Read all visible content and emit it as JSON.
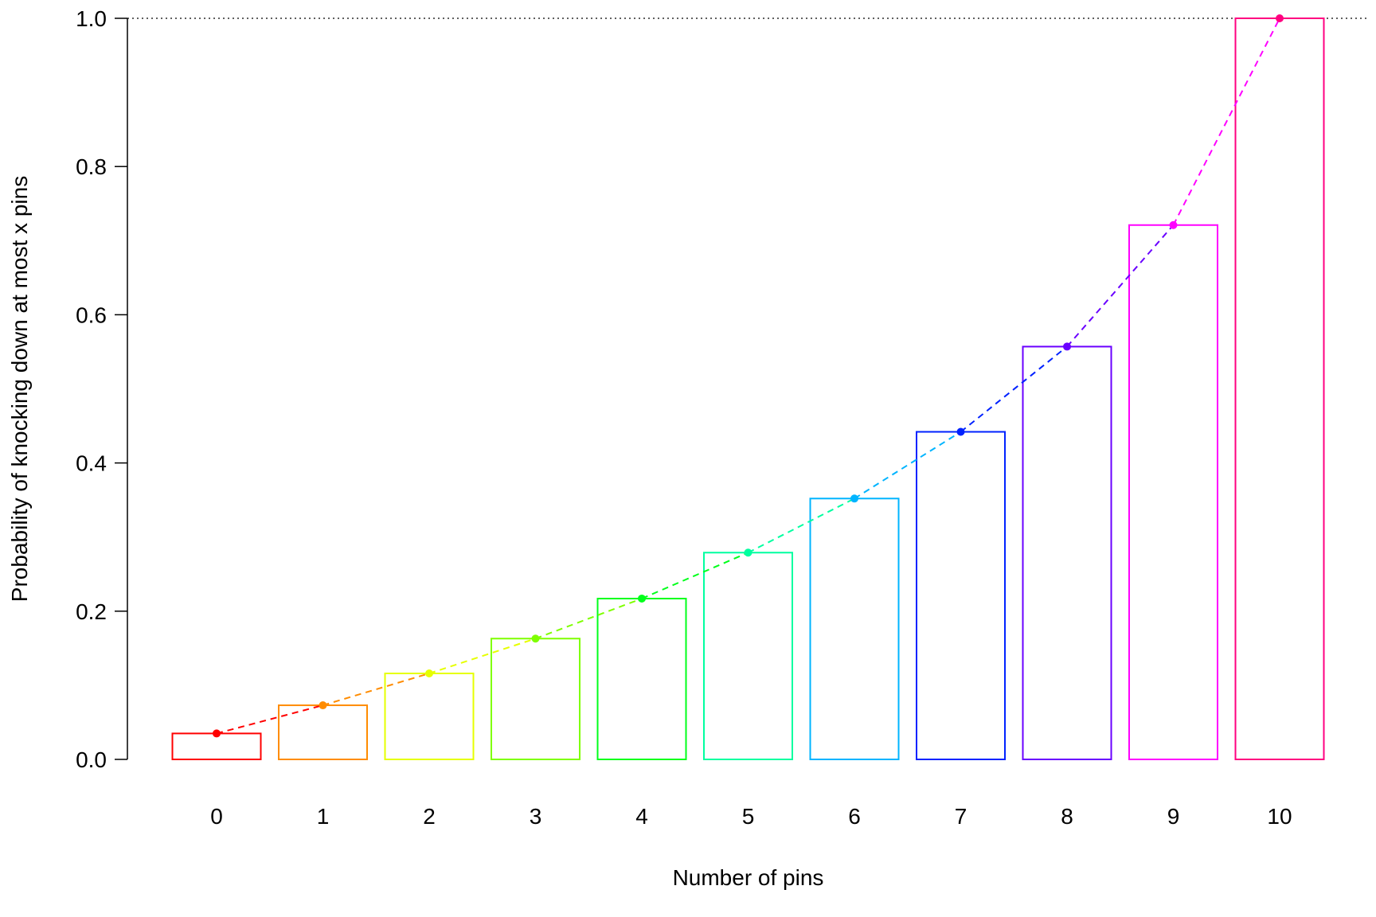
{
  "chart_data": {
    "type": "bar",
    "title": "",
    "xlabel": "Number of pins",
    "ylabel": "Probability of knocking down at most x pins",
    "categories": [
      "0",
      "1",
      "2",
      "3",
      "4",
      "5",
      "6",
      "7",
      "8",
      "9",
      "10"
    ],
    "values": [
      0.035,
      0.073,
      0.116,
      0.163,
      0.217,
      0.279,
      0.352,
      0.442,
      0.557,
      0.721,
      1.0
    ],
    "bar_colors": [
      "#FF0000",
      "#FF8C00",
      "#E6FF00",
      "#7FFF00",
      "#00FF1A",
      "#00FFA0",
      "#00B4FF",
      "#0022FF",
      "#6A00FF",
      "#FF00FF",
      "#FF0080"
    ],
    "overlay": {
      "type": "line",
      "style": "dashed",
      "markers": "points",
      "values": [
        0.035,
        0.073,
        0.116,
        0.163,
        0.217,
        0.279,
        0.352,
        0.442,
        0.557,
        0.721,
        1.0
      ]
    },
    "reference_line": {
      "y": 1.0,
      "style": "dotted",
      "color": "#000000"
    },
    "ylim": [
      0,
      1
    ],
    "yticks": [
      0.0,
      0.2,
      0.4,
      0.6,
      0.8,
      1.0
    ],
    "ytick_labels": [
      "0.0",
      "0.2",
      "0.4",
      "0.6",
      "0.8",
      "1.0"
    ],
    "grid": false,
    "legend": "none"
  }
}
